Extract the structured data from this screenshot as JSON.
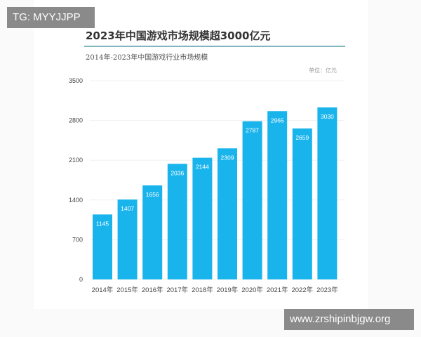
{
  "watermarks": {
    "top_left": "TG: MYYJJPP",
    "bottom_right": "www.zrshipinbjgw.org"
  },
  "colors": {
    "bar": "#1ab4ec",
    "rule": "#7fb6bf"
  },
  "chart_data": {
    "type": "bar",
    "title": "2023年中国游戏市场规模超3000亿元",
    "subtitle": "2014年-2023年中国游戏行业市场规模",
    "unit": "单位：亿元",
    "categories": [
      "2014年",
      "2015年",
      "2016年",
      "2017年",
      "2018年",
      "2019年",
      "2020年",
      "2021年",
      "2022年",
      "2023年"
    ],
    "values": [
      1145,
      1407,
      1656,
      2036,
      2144,
      2309,
      2787,
      2965,
      2659,
      3030
    ],
    "yticks": [
      0,
      700,
      1400,
      2100,
      2800,
      3500
    ],
    "ylim": [
      0,
      3500
    ],
    "xlabel": "",
    "ylabel": "",
    "grid": true,
    "legend": "none"
  }
}
